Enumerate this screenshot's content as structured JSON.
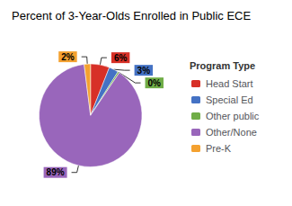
{
  "chart_data": {
    "type": "pie",
    "title": "Percent of 3-Year-Olds Enrolled in Public ECE",
    "categories": [
      "Head Start",
      "Special Ed",
      "Other public",
      "Other/None",
      "Pre-K"
    ],
    "values": [
      6,
      3,
      0.5,
      89,
      2
    ],
    "value_labels": [
      "6%",
      "3%",
      "0%",
      "89%",
      "2%"
    ],
    "colors": [
      "#d73027",
      "#4472c4",
      "#70ad47",
      "#9966bb",
      "#f4a130"
    ],
    "data_labels": true,
    "legend": "right",
    "legend_title": "Program Type"
  }
}
